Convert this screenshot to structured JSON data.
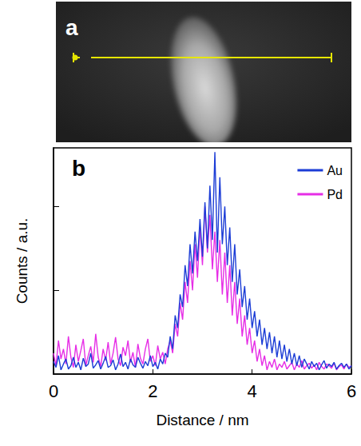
{
  "image_panel": {
    "label": "a"
  },
  "chart_data": {
    "type": "line",
    "panel_label": "b",
    "x_label": "Distance / nm",
    "y_label": "Counts / a.u.",
    "x": [
      0,
      0.05,
      0.1,
      0.15,
      0.2,
      0.25,
      0.3,
      0.35,
      0.4,
      0.45,
      0.5,
      0.55,
      0.6,
      0.65,
      0.7,
      0.75,
      0.8,
      0.85,
      0.9,
      0.95,
      1,
      1.05,
      1.1,
      1.15,
      1.2,
      1.25,
      1.3,
      1.35,
      1.4,
      1.45,
      1.5,
      1.55,
      1.6,
      1.65,
      1.7,
      1.75,
      1.8,
      1.85,
      1.9,
      1.95,
      2,
      2.05,
      2.1,
      2.15,
      2.2,
      2.25,
      2.3,
      2.35,
      2.4,
      2.45,
      2.5,
      2.55,
      2.6,
      2.65,
      2.7,
      2.75,
      2.8,
      2.85,
      2.9,
      2.95,
      3,
      3.05,
      3.1,
      3.15,
      3.2,
      3.25,
      3.3,
      3.35,
      3.4,
      3.45,
      3.5,
      3.55,
      3.6,
      3.65,
      3.7,
      3.75,
      3.8,
      3.85,
      3.9,
      3.95,
      4,
      4.05,
      4.1,
      4.15,
      4.2,
      4.25,
      4.3,
      4.35,
      4.4,
      4.45,
      4.5,
      4.55,
      4.6,
      4.65,
      4.7,
      4.75,
      4.8,
      4.85,
      4.9,
      4.95,
      5,
      5.05,
      5.1,
      5.15,
      5.2,
      5.25,
      5.3,
      5.35,
      5.4,
      5.45,
      5.5,
      5.55,
      5.6,
      5.65,
      5.7,
      5.75,
      5.8,
      5.85,
      5.9,
      5.95,
      6
    ],
    "series": [
      {
        "name": "Au",
        "color": "#1c3dd6",
        "values": [
          0.15,
          0.08,
          0.22,
          0.05,
          0.12,
          0.18,
          0.06,
          0.1,
          0.2,
          0.08,
          0.14,
          0.05,
          0.19,
          0.09,
          0.12,
          0.25,
          0.07,
          0.11,
          0.16,
          0.06,
          0.13,
          0.21,
          0.08,
          0.1,
          0.17,
          0.05,
          0.12,
          0.24,
          0.09,
          0.14,
          0.06,
          0.18,
          0.11,
          0.08,
          0.2,
          0.13,
          0.07,
          0.15,
          0.1,
          0.22,
          0.09,
          0.14,
          0.06,
          0.18,
          0.12,
          0.25,
          0.2,
          0.45,
          0.3,
          0.7,
          0.55,
          0.95,
          0.8,
          1.3,
          1.05,
          1.55,
          1.2,
          1.7,
          1.35,
          1.85,
          1.4,
          2.05,
          1.5,
          2.25,
          1.6,
          2.65,
          1.45,
          2.35,
          1.55,
          2.0,
          1.3,
          1.75,
          1.1,
          1.55,
          0.95,
          1.25,
          0.8,
          1.05,
          0.65,
          0.9,
          0.55,
          0.75,
          0.45,
          0.65,
          0.35,
          0.55,
          0.3,
          0.5,
          0.25,
          0.45,
          0.2,
          0.4,
          0.18,
          0.35,
          0.15,
          0.3,
          0.12,
          0.25,
          0.1,
          0.22,
          0.08,
          0.18,
          0.12,
          0.06,
          0.15,
          0.09,
          0.13,
          0.05,
          0.11,
          0.16,
          0.07,
          0.12,
          0.09,
          0.14,
          0.06,
          0.1,
          0.13,
          0.08,
          0.12,
          0.06,
          0.1
        ]
      },
      {
        "name": "Pd",
        "color": "#e62ee6",
        "values": [
          0.25,
          0.1,
          0.4,
          0.18,
          0.3,
          0.12,
          0.45,
          0.2,
          0.08,
          0.35,
          0.15,
          0.28,
          0.42,
          0.1,
          0.22,
          0.33,
          0.14,
          0.48,
          0.2,
          0.09,
          0.3,
          0.16,
          0.38,
          0.12,
          0.25,
          0.44,
          0.18,
          0.1,
          0.32,
          0.22,
          0.4,
          0.14,
          0.26,
          0.08,
          0.36,
          0.19,
          0.12,
          0.3,
          0.42,
          0.15,
          0.22,
          0.1,
          0.34,
          0.18,
          0.26,
          0.12,
          0.3,
          0.4,
          0.25,
          0.6,
          0.45,
          0.85,
          0.65,
          1.1,
          0.85,
          1.35,
          1.0,
          1.55,
          1.15,
          1.75,
          1.3,
          2.0,
          1.45,
          1.9,
          1.25,
          1.7,
          1.1,
          1.6,
          0.95,
          1.45,
          0.85,
          1.3,
          0.7,
          1.1,
          0.6,
          0.9,
          0.45,
          0.7,
          0.35,
          0.55,
          0.25,
          0.4,
          0.15,
          0.3,
          0.1,
          0.22,
          0.05,
          0.15,
          0.08,
          0.18,
          0.05,
          0.12,
          0.08,
          0.15,
          0.06,
          0.1,
          0.14,
          0.05,
          0.12,
          0.08,
          0.16,
          0.06,
          0.1,
          0.13,
          0.07,
          0.11,
          0.05,
          0.14,
          0.09,
          0.06,
          0.12,
          0.1,
          0.07,
          0.13,
          0.05,
          0.09,
          0.11,
          0.06,
          0.12,
          0.08,
          0.1
        ]
      }
    ],
    "xlim": [
      0,
      6
    ],
    "xticks": [
      0,
      2,
      4,
      6
    ],
    "ylim": [
      0,
      2.7
    ],
    "yticks": [
      1,
      2
    ],
    "tick_labels": "x",
    "grid": false,
    "legend": "upper right"
  }
}
